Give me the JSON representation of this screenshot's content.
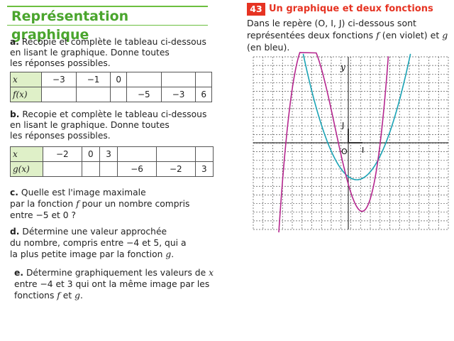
{
  "left": {
    "title": "Représentation graphique",
    "qa": {
      "letter": "a.",
      "l1": "Recopie et complète le tableau ci-dessous",
      "l2": "en lisant le graphique. Donne toutes",
      "l3": "les réponses possibles."
    },
    "table1": {
      "h1": "x",
      "h2": "f(x)",
      "row1": [
        "−3",
        "−1",
        "0",
        "",
        "",
        ""
      ],
      "row2": [
        "",
        "",
        "",
        "−5",
        "−3",
        "6"
      ]
    },
    "qb": {
      "letter": "b.",
      "l1": "Recopie et complète le tableau ci-dessous",
      "l2": "en lisant le graphique. Donne toutes",
      "l3": "les réponses possibles."
    },
    "table2": {
      "h1": "x",
      "h2": "g(x)",
      "row1": [
        "−2",
        "0",
        "3",
        "",
        "",
        ""
      ],
      "row2": [
        "",
        "",
        "",
        "−6",
        "−2",
        "3"
      ]
    },
    "qc": {
      "letter": "c.",
      "l1": "Quelle est l'image maximale",
      "l2a": "par la fonction",
      "l2f": "f",
      "l2b": "pour un nombre compris",
      "l3": "entre −5 et 0 ?"
    },
    "qd": {
      "letter": "d.",
      "l1": "Détermine une valeur approchée",
      "l2": "du nombre, compris entre −4 et 5, qui a",
      "l3a": "la plus petite image par la fonction",
      "l3g": "g",
      "l3b": "."
    },
    "qe": {
      "letter": "e.",
      "l1a": "Détermine graphiquement les valeurs de",
      "l1x": "x",
      "l2": "entre −4 et 3 qui ont la même image par les",
      "l3a": "fonctions",
      "l3f": "f",
      "l3m": "et",
      "l3g": "g",
      "l3b": "."
    }
  },
  "exercise": {
    "number": "43",
    "title": "Un graphique et deux fonctions",
    "l1": "Dans le repère (O, I, J) ci-dessous sont",
    "l2a": "représentées deux fonctions",
    "l2f": "f",
    "l2b": "(en violet) et",
    "l2g": "g",
    "l3": "(en bleu)."
  },
  "graph": {
    "labels": {
      "y": "y",
      "J": "J",
      "O": "O",
      "I": "I"
    },
    "colors": {
      "f": "#b5278f",
      "g": "#1aa3b5",
      "grid": "#555555",
      "axis": "#333333"
    }
  }
}
